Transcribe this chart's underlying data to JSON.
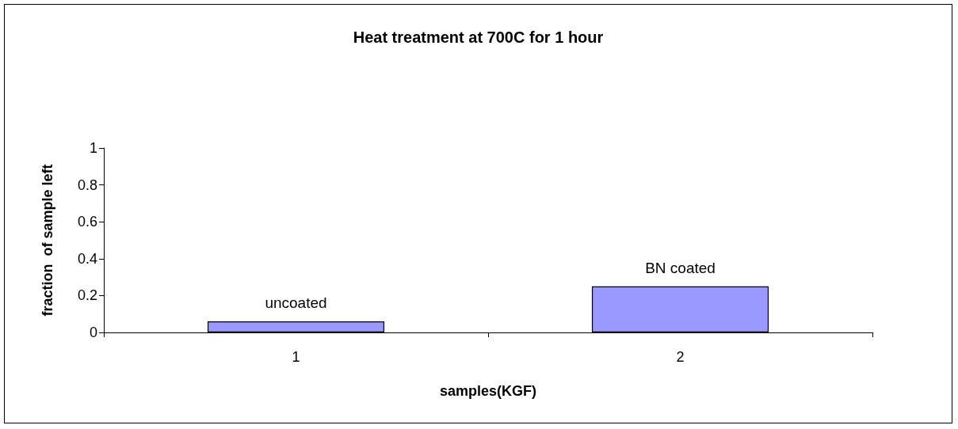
{
  "chart_data": {
    "type": "bar",
    "title": "Heat treatment at 700C for 1 hour",
    "xlabel": "samples(KGF)",
    "ylabel": "fraction  of sample left",
    "categories": [
      "1",
      "2"
    ],
    "values": [
      0.06,
      0.25
    ],
    "color": "#9999ff",
    "ylim": [
      0,
      1
    ],
    "yticks": [
      0,
      0.2,
      0.4,
      0.6,
      0.8,
      1
    ],
    "grid": false,
    "annotations": [
      {
        "text": "uncoated",
        "x": "1",
        "y": 0.06
      },
      {
        "text": "BN coated",
        "x": "2",
        "y": 0.25
      }
    ]
  }
}
